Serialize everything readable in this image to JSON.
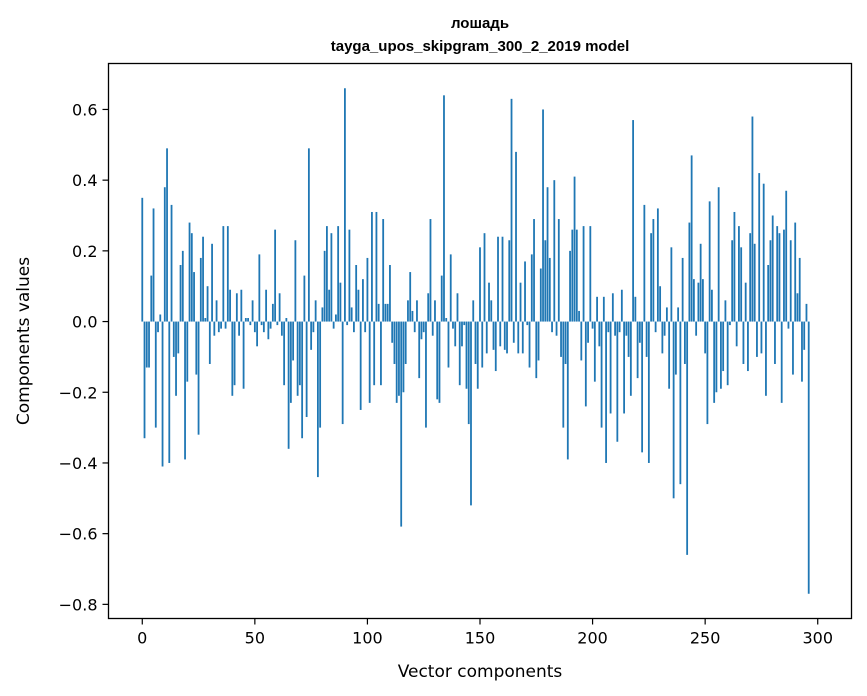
{
  "chart_data": {
    "type": "bar",
    "title": "лошадь",
    "subtitle": "tayga_upos_skipgram_300_2_2019 model",
    "xlabel": "Vector components",
    "ylabel": "Components values",
    "xlim": [
      -15,
      315
    ],
    "ylim": [
      -0.84,
      0.73
    ],
    "xticks": [
      0,
      50,
      100,
      150,
      200,
      250,
      300
    ],
    "yticks": [
      -0.8,
      -0.6,
      -0.4,
      -0.2,
      0.0,
      0.2,
      0.4,
      0.6
    ],
    "ytick_labels": [
      "−0.8",
      "−0.6",
      "−0.4",
      "−0.2",
      "0.0",
      "0.2",
      "0.4",
      "0.6"
    ],
    "grid": false,
    "bar_color": "#1f77b4",
    "series": [
      {
        "values": [
          0.35,
          -0.33,
          -0.13,
          -0.13,
          0.13,
          0.32,
          -0.3,
          -0.03,
          0.02,
          -0.41,
          0.38,
          0.49,
          -0.4,
          0.33,
          -0.1,
          -0.21,
          -0.09,
          0.16,
          0.2,
          -0.39,
          -0.17,
          0.28,
          0.25,
          0.14,
          -0.15,
          -0.32,
          0.18,
          0.24,
          0.01,
          0.1,
          -0.12,
          0.22,
          -0.04,
          0.06,
          -0.03,
          -0.02,
          0.27,
          -0.02,
          0.27,
          0.09,
          -0.21,
          -0.18,
          0.08,
          -0.04,
          0.09,
          -0.19,
          0.01,
          0.01,
          -0.01,
          0.06,
          -0.03,
          -0.07,
          0.19,
          -0.01,
          -0.03,
          0.09,
          -0.05,
          -0.02,
          0.05,
          0.26,
          -0.01,
          0.08,
          -0.04,
          -0.18,
          0.01,
          -0.36,
          -0.23,
          -0.11,
          0.23,
          -0.21,
          -0.18,
          -0.33,
          0.13,
          -0.27,
          0.49,
          -0.08,
          -0.03,
          0.06,
          -0.44,
          -0.3,
          0.04,
          0.2,
          0.27,
          0.09,
          0.25,
          -0.02,
          0.02,
          0.27,
          0.11,
          -0.29,
          0.66,
          -0.01,
          0.26,
          0.04,
          -0.03,
          0.16,
          0.09,
          -0.25,
          0.12,
          -0.03,
          0.18,
          -0.23,
          0.31,
          -0.18,
          0.31,
          0.05,
          -0.18,
          0.29,
          0.05,
          0.05,
          0.16,
          -0.06,
          -0.12,
          -0.23,
          -0.21,
          -0.58,
          -0.2,
          -0.12,
          0.06,
          0.14,
          0.03,
          -0.03,
          0.06,
          -0.16,
          -0.05,
          -0.03,
          -0.3,
          0.08,
          0.29,
          -0.04,
          0.06,
          -0.22,
          -0.23,
          0.13,
          0.64,
          0.01,
          -0.13,
          0.19,
          -0.02,
          -0.07,
          0.08,
          -0.18,
          -0.07,
          -0.01,
          -0.19,
          -0.29,
          -0.52,
          0.06,
          -0.12,
          -0.19,
          0.21,
          -0.13,
          0.25,
          -0.09,
          0.11,
          0.06,
          -0.08,
          -0.14,
          0.24,
          -0.07,
          0.24,
          -0.08,
          -0.09,
          0.23,
          0.63,
          -0.06,
          0.48,
          -0.09,
          0.11,
          -0.09,
          0.17,
          -0.01,
          -0.13,
          0.19,
          0.29,
          -0.16,
          -0.11,
          0.15,
          0.6,
          0.23,
          0.38,
          0.18,
          -0.03,
          0.4,
          -0.04,
          0.29,
          -0.1,
          -0.3,
          -0.12,
          -0.39,
          0.2,
          0.26,
          0.41,
          0.26,
          0.03,
          -0.11,
          0.27,
          -0.24,
          -0.06,
          0.27,
          -0.02,
          -0.17,
          0.07,
          -0.07,
          -0.3,
          0.07,
          -0.4,
          -0.03,
          -0.26,
          0.08,
          -0.04,
          -0.34,
          -0.03,
          0.09,
          -0.26,
          -0.04,
          -0.1,
          -0.21,
          0.57,
          0.07,
          -0.16,
          -0.06,
          -0.37,
          0.33,
          -0.1,
          -0.4,
          0.25,
          0.29,
          -0.03,
          0.32,
          0.1,
          -0.09,
          -0.04,
          0.04,
          -0.19,
          0.21,
          -0.5,
          -0.15,
          0.04,
          -0.46,
          0.18,
          -0.12,
          -0.66,
          0.28,
          0.47,
          0.12,
          -0.04,
          0.11,
          0.22,
          0.12,
          -0.09,
          -0.29,
          0.34,
          0.09,
          -0.23,
          -0.2,
          0.38,
          -0.19,
          -0.14,
          0.06,
          -0.18,
          -0.01,
          0.23,
          0.31,
          -0.07,
          0.27,
          0.21,
          -0.12,
          0.11,
          -0.14,
          0.25,
          0.58,
          0.22,
          -0.1,
          0.42,
          -0.09,
          0.39,
          -0.21,
          0.16,
          0.23,
          0.3,
          -0.12,
          0.27,
          0.25,
          -0.23,
          0.26,
          0.37,
          -0.02,
          0.23,
          -0.15,
          0.28,
          0.08,
          0.18,
          -0.17,
          -0.08,
          0.05,
          -0.77
        ]
      }
    ]
  }
}
